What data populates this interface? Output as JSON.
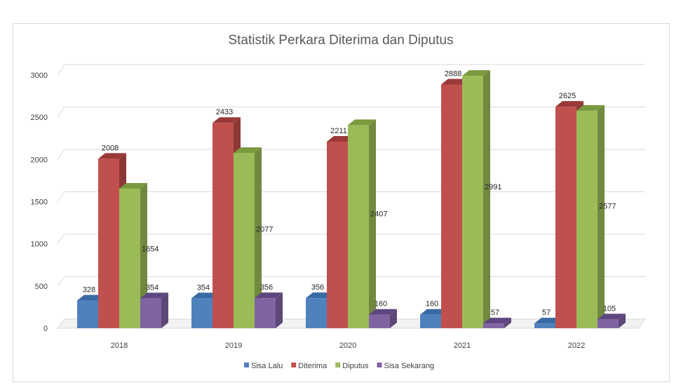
{
  "chart_data": {
    "type": "bar",
    "title": "Statistik Perkara Diterima dan Diputus",
    "xlabel": "",
    "ylabel": "",
    "categories": [
      "2018",
      "2019",
      "2020",
      "2021",
      "2022"
    ],
    "ylim": [
      0,
      3000
    ],
    "yticks": [
      0,
      500,
      1000,
      1500,
      2000,
      2500,
      3000
    ],
    "grid": true,
    "legend_position": "bottom",
    "style": "3d-column",
    "series": [
      {
        "name": "Sisa Lalu",
        "color": "#4f81bd",
        "side": "#385d8a",
        "top": "#3a6aa3",
        "values": [
          328,
          354,
          356,
          160,
          57
        ]
      },
      {
        "name": "Diterima",
        "color": "#c0504d",
        "side": "#8c3836",
        "top": "#9a3a38",
        "values": [
          2008,
          2433,
          2211,
          2888,
          2625
        ]
      },
      {
        "name": "Diputus",
        "color": "#9bbb59",
        "side": "#71893f",
        "top": "#7a9a3e",
        "values": [
          1654,
          2077,
          2407,
          2991,
          2577
        ]
      },
      {
        "name": "Sisa Sekarang",
        "color": "#8064a2",
        "side": "#5c4776",
        "top": "#5e4780",
        "values": [
          354,
          356,
          160,
          57,
          105
        ]
      }
    ]
  }
}
